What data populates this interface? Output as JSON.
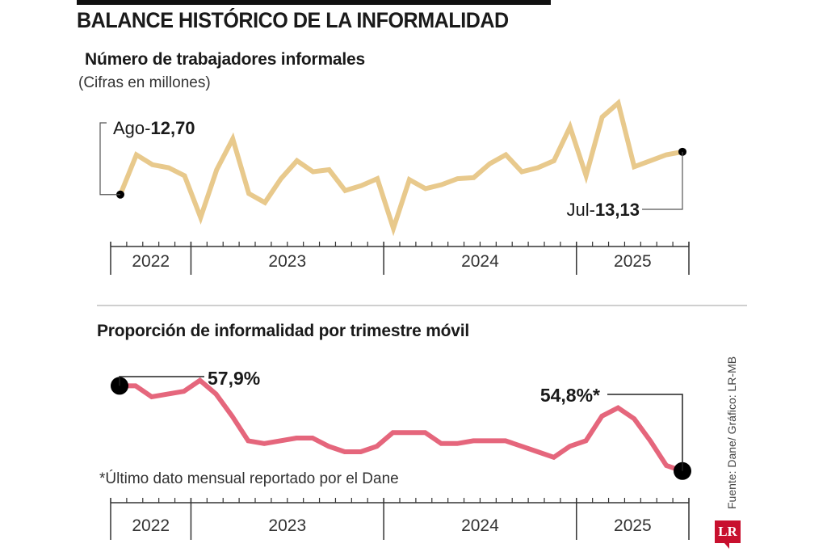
{
  "header": {
    "title": "BALANCE HISTÓRICO DE LA INFORMALIDAD"
  },
  "source": "Fuente: Dane/ Gráfico: LR-MB",
  "logo": "LR",
  "footnote": "*Último dato mensual reportado por el Dane",
  "colors": {
    "series1": "#e8c98c",
    "series2": "#e5667c",
    "accent_logo": "#c8102e"
  },
  "chart_data": [
    {
      "type": "line",
      "title": "Número de trabajadores informales",
      "subtitle": "(Cifras en millones)",
      "xlabel": "",
      "ylabel": "",
      "x_start": "Ago 2022",
      "x_end": "Jul 2025",
      "year_labels": [
        "2022",
        "2023",
        "2024",
        "2025"
      ],
      "year_months": [
        5,
        12,
        12,
        7
      ],
      "ylim": [
        12.3,
        13.6
      ],
      "grid": false,
      "series": [
        {
          "name": "Trabajadores informales (millones)",
          "values": [
            12.7,
            13.1,
            13.0,
            12.97,
            12.89,
            12.47,
            12.95,
            13.26,
            12.71,
            12.62,
            12.86,
            13.04,
            12.93,
            12.95,
            12.74,
            12.79,
            12.86,
            12.36,
            12.85,
            12.76,
            12.8,
            12.86,
            12.87,
            13.01,
            13.1,
            12.93,
            12.97,
            13.04,
            13.38,
            12.89,
            13.48,
            13.62,
            12.98,
            13.04,
            13.1,
            13.13
          ]
        }
      ],
      "annotations": [
        {
          "prefix": "Ago-",
          "value": "12,70",
          "point": "first"
        },
        {
          "prefix": "Jul-",
          "value": "13,13",
          "point": "last"
        }
      ]
    },
    {
      "type": "line",
      "title": "Proporción de informalidad por trimestre móvil",
      "xlabel": "",
      "ylabel": "",
      "x_start": "Ago 2022",
      "x_end": "Jul 2025",
      "year_labels": [
        "2022",
        "2023",
        "2024",
        "2025"
      ],
      "year_months": [
        5,
        12,
        12,
        7
      ],
      "ylim": [
        54.0,
        59.0
      ],
      "grid": false,
      "series": [
        {
          "name": "Proporción de informalidad (%)",
          "values": [
            57.9,
            57.9,
            57.5,
            57.6,
            57.7,
            58.1,
            57.6,
            56.8,
            55.9,
            55.8,
            55.9,
            56.0,
            56.0,
            55.7,
            55.5,
            55.5,
            55.7,
            56.2,
            56.2,
            56.2,
            55.8,
            55.8,
            55.9,
            55.9,
            55.9,
            55.7,
            55.5,
            55.3,
            55.7,
            55.9,
            56.8,
            57.1,
            56.7,
            55.9,
            55.0,
            54.8
          ]
        }
      ],
      "annotations": [
        {
          "prefix": "",
          "value": "57,9%",
          "point": "first"
        },
        {
          "prefix": "",
          "value": "54,8%*",
          "point": "last"
        }
      ]
    }
  ]
}
